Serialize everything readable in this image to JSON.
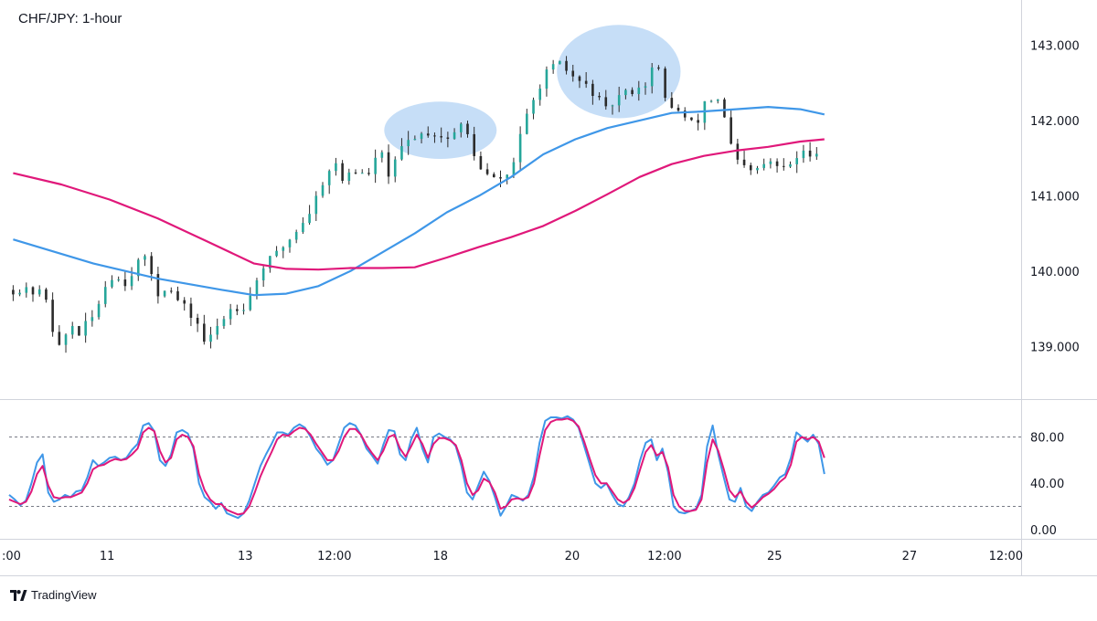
{
  "title": "CHF/JPY: 1-hour",
  "brand": {
    "name": "TradingView",
    "icon": "tradingview-logo-icon"
  },
  "colors": {
    "bull": "#26a69a",
    "bear": "#131722",
    "candle": "#2b2b2b",
    "ma_short": "#3f97e8",
    "ma_long": "#e0187a",
    "stoch_k": "#3f97e8",
    "stoch_d": "#e0187a",
    "highlight": "#a8cdf3",
    "grid": "#e8e8e8",
    "axis_text": "#131722"
  },
  "chart_data": [
    {
      "type": "candlestick",
      "title": "CHF/JPY: 1-hour",
      "ylim": [
        138.3,
        143.6
      ],
      "y_ticks": [
        "143.000",
        "142.000",
        "141.000",
        "140.000",
        "139.000"
      ],
      "y_tick_values": [
        143,
        142,
        141,
        140,
        139
      ],
      "x_ticks": [
        ":00",
        "11",
        "13",
        "12:00",
        "18",
        "20",
        "12:00",
        "25",
        "27",
        "12:00"
      ],
      "x_tick_positions": [
        0.0,
        11.7,
        28.9,
        40.0,
        53.2,
        69.6,
        81.1,
        94.8,
        111.6,
        123.6
      ],
      "bars_count": 126,
      "close_path": [
        [
          0,
          139.75
        ],
        [
          4,
          139.7
        ],
        [
          5,
          139.2
        ],
        [
          6,
          138.9
        ],
        [
          7,
          139.35
        ],
        [
          8,
          139.15
        ],
        [
          10,
          139.4
        ],
        [
          12,
          139.95
        ],
        [
          14,
          139.85
        ],
        [
          16,
          140.2
        ],
        [
          17,
          140.05
        ],
        [
          18,
          139.7
        ],
        [
          19,
          139.8
        ],
        [
          21,
          139.55
        ],
        [
          23,
          139.3
        ],
        [
          24,
          139.0
        ],
        [
          25,
          139.2
        ],
        [
          27,
          139.5
        ],
        [
          29,
          139.55
        ],
        [
          31,
          140.05
        ],
        [
          33,
          140.25
        ],
        [
          35,
          140.5
        ],
        [
          37,
          140.8
        ],
        [
          39,
          141.3
        ],
        [
          40,
          141.45
        ],
        [
          41,
          141.2
        ],
        [
          42,
          141.35
        ],
        [
          44,
          141.25
        ],
        [
          45,
          141.45
        ],
        [
          46,
          141.55
        ],
        [
          47,
          141.2
        ],
        [
          48,
          141.6
        ],
        [
          50,
          141.8
        ],
        [
          52,
          141.85
        ],
        [
          54,
          141.75
        ],
        [
          56,
          141.95
        ],
        [
          57,
          141.7
        ],
        [
          58,
          141.35
        ],
        [
          60,
          141.2
        ],
        [
          62,
          141.3
        ],
        [
          63,
          141.8
        ],
        [
          65,
          142.3
        ],
        [
          66,
          142.6
        ],
        [
          68,
          142.75
        ],
        [
          70,
          142.55
        ],
        [
          72,
          142.4
        ],
        [
          74,
          142.1
        ],
        [
          75,
          142.3
        ],
        [
          77,
          142.4
        ],
        [
          79,
          142.5
        ],
        [
          80,
          142.85
        ],
        [
          81,
          142.3
        ],
        [
          83,
          142.1
        ],
        [
          85,
          141.9
        ],
        [
          86,
          142.25
        ],
        [
          88,
          142.3
        ],
        [
          89,
          141.8
        ],
        [
          90,
          141.45
        ],
        [
          92,
          141.3
        ],
        [
          94,
          141.45
        ],
        [
          96,
          141.35
        ],
        [
          98,
          141.55
        ],
        [
          100,
          141.6
        ],
        [
          101,
          141.45
        ]
      ],
      "series": [
        {
          "name": "",
          "type": "line",
          "points": [
            [
              0,
              140.42
            ],
            [
              10,
              140.1
            ],
            [
              18,
              139.9
            ],
            [
              26,
              139.75
            ],
            [
              30,
              139.68
            ],
            [
              34,
              139.7
            ],
            [
              38,
              139.8
            ],
            [
              42,
              140.0
            ],
            [
              46,
              140.25
            ],
            [
              50,
              140.5
            ],
            [
              54,
              140.78
            ],
            [
              58,
              141.0
            ],
            [
              62,
              141.25
            ],
            [
              66,
              141.55
            ],
            [
              70,
              141.75
            ],
            [
              74,
              141.9
            ],
            [
              78,
              142.0
            ],
            [
              82,
              142.1
            ],
            [
              86,
              142.12
            ],
            [
              90,
              142.15
            ],
            [
              94,
              142.18
            ],
            [
              98,
              142.15
            ],
            [
              101,
              142.08
            ]
          ]
        },
        {
          "name": "",
          "type": "line",
          "points": [
            [
              0,
              141.3
            ],
            [
              6,
              141.15
            ],
            [
              12,
              140.95
            ],
            [
              18,
              140.7
            ],
            [
              24,
              140.4
            ],
            [
              30,
              140.1
            ],
            [
              34,
              140.03
            ],
            [
              38,
              140.02
            ],
            [
              42,
              140.04
            ],
            [
              46,
              140.04
            ],
            [
              50,
              140.05
            ],
            [
              54,
              140.18
            ],
            [
              58,
              140.32
            ],
            [
              62,
              140.45
            ],
            [
              66,
              140.6
            ],
            [
              70,
              140.8
            ],
            [
              74,
              141.02
            ],
            [
              78,
              141.25
            ],
            [
              82,
              141.42
            ],
            [
              86,
              141.53
            ],
            [
              90,
              141.6
            ],
            [
              94,
              141.65
            ],
            [
              98,
              141.72
            ],
            [
              101,
              141.75
            ]
          ]
        }
      ],
      "annotations": [
        {
          "type": "ellipse",
          "x_center": 53.2,
          "y_center": 141.87,
          "x_radius": 7.0,
          "y_radius": 0.38
        },
        {
          "type": "ellipse",
          "x_center": 75.4,
          "y_center": 142.65,
          "x_radius": 7.7,
          "y_radius": 0.62
        }
      ]
    },
    {
      "type": "line",
      "title": "",
      "ylim": [
        -8,
        112
      ],
      "y_ticks": [
        "80.00",
        "40.00",
        "0.00"
      ],
      "y_tick_values": [
        80,
        40,
        0
      ],
      "levels": [
        80,
        20
      ],
      "series": [
        {
          "name": "",
          "values": [
            30,
            26,
            21,
            25,
            40,
            58,
            65,
            32,
            24,
            26,
            30,
            28,
            33,
            34,
            45,
            60,
            55,
            58,
            62,
            63,
            60,
            62,
            69,
            74,
            90,
            92,
            85,
            60,
            55,
            65,
            84,
            86,
            83,
            70,
            40,
            28,
            24,
            18,
            23,
            14,
            12,
            10,
            14,
            25,
            40,
            55,
            65,
            74,
            84,
            84,
            82,
            88,
            91,
            88,
            80,
            70,
            64,
            56,
            60,
            74,
            88,
            92,
            90,
            82,
            70,
            64,
            57,
            73,
            86,
            85,
            65,
            60,
            78,
            88,
            70,
            58,
            80,
            83,
            80,
            78,
            72,
            55,
            32,
            26,
            38,
            50,
            42,
            28,
            12,
            20,
            30,
            28,
            25,
            30,
            46,
            75,
            94,
            97,
            97,
            96,
            98,
            95,
            88,
            72,
            56,
            40,
            36,
            40,
            30,
            22,
            20,
            28,
            40,
            60,
            75,
            78,
            60,
            70,
            50,
            20,
            15,
            14,
            16,
            18,
            30,
            72,
            90,
            65,
            45,
            26,
            24,
            36,
            20,
            16,
            24,
            30,
            32,
            38,
            45,
            48,
            62,
            84,
            80,
            76,
            82,
            74,
            48
          ]
        },
        {
          "name": "",
          "values": [
            26,
            24,
            22,
            24,
            33,
            48,
            55,
            38,
            28,
            27,
            28,
            28,
            30,
            32,
            40,
            52,
            55,
            56,
            59,
            61,
            60,
            61,
            65,
            70,
            84,
            88,
            85,
            68,
            58,
            62,
            78,
            82,
            80,
            72,
            48,
            34,
            26,
            22,
            22,
            17,
            15,
            13,
            14,
            20,
            32,
            46,
            57,
            67,
            78,
            82,
            81,
            85,
            88,
            87,
            82,
            74,
            67,
            60,
            60,
            68,
            80,
            87,
            87,
            82,
            73,
            66,
            60,
            68,
            80,
            82,
            70,
            63,
            72,
            82,
            74,
            62,
            74,
            79,
            79,
            77,
            73,
            60,
            40,
            30,
            34,
            44,
            41,
            32,
            18,
            20,
            26,
            27,
            26,
            28,
            40,
            64,
            86,
            93,
            95,
            95,
            96,
            94,
            89,
            76,
            61,
            47,
            40,
            40,
            33,
            26,
            23,
            26,
            36,
            52,
            67,
            73,
            64,
            67,
            54,
            30,
            20,
            16,
            16,
            17,
            26,
            58,
            78,
            68,
            52,
            34,
            28,
            33,
            24,
            19,
            23,
            28,
            31,
            35,
            41,
            45,
            56,
            76,
            80,
            78,
            80,
            76,
            62
          ]
        }
      ]
    }
  ]
}
